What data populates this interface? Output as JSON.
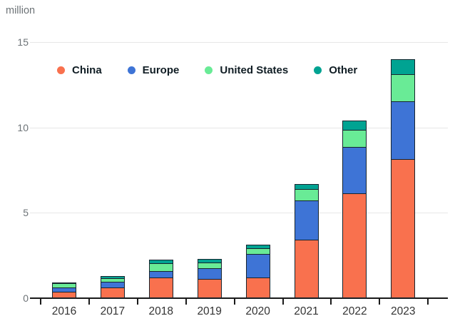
{
  "unit_label": "million",
  "colors": {
    "china": "#f9714e",
    "europe": "#3e74d6",
    "united_states": "#69eb96",
    "other": "#00a392",
    "segment_border": "#16242e",
    "axis": "#1a1a1a",
    "gridline": "#e7e7e7",
    "tick_label_text": "#6d7377",
    "category_label_text": "#333333",
    "legend_text": "#101d24",
    "background": "#ffffff"
  },
  "legend": {
    "position": "top-left-inside",
    "items": [
      {
        "label": "China",
        "color": "#f9714e"
      },
      {
        "label": "Europe",
        "color": "#3e74d6"
      },
      {
        "label": "United States",
        "color": "#69eb96"
      },
      {
        "label": "Other",
        "color": "#00a392"
      }
    ]
  },
  "chart_data": {
    "type": "bar",
    "stacked": true,
    "title": "",
    "unit": "million",
    "categories": [
      "2016",
      "2017",
      "2018",
      "2019",
      "2020",
      "2021",
      "2022",
      "2023"
    ],
    "series": [
      {
        "name": "China",
        "color": "#f9714e",
        "values": [
          0.35,
          0.6,
          1.15,
          1.1,
          1.15,
          3.4,
          6.1,
          8.1
        ]
      },
      {
        "name": "Europe",
        "color": "#3e74d6",
        "values": [
          0.25,
          0.3,
          0.4,
          0.6,
          1.4,
          2.3,
          2.7,
          3.4
        ]
      },
      {
        "name": "United States",
        "color": "#69eb96",
        "values": [
          0.25,
          0.25,
          0.45,
          0.35,
          0.35,
          0.65,
          1.0,
          1.6
        ]
      },
      {
        "name": "Other",
        "color": "#00a392",
        "values": [
          0.05,
          0.15,
          0.25,
          0.25,
          0.25,
          0.35,
          0.6,
          0.9
        ]
      }
    ],
    "totals_estimated": [
      0.9,
      1.3,
      2.25,
      2.3,
      3.15,
      6.7,
      10.4,
      14.0
    ],
    "ylabel": "million",
    "xlabel": "",
    "ylim": [
      0,
      15
    ],
    "y_ticks": [
      0,
      5,
      10,
      15
    ],
    "grid": true,
    "legend_position": "top-left-inside"
  }
}
